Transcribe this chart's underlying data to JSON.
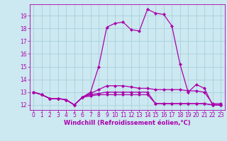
{
  "xlabel": "Windchill (Refroidissement éolien,°C)",
  "background_color": "#cce8f0",
  "grid_color": "#aad0dc",
  "line_color": "#aa00aa",
  "x_hours": [
    0,
    1,
    2,
    3,
    4,
    5,
    6,
    7,
    8,
    9,
    10,
    11,
    12,
    13,
    14,
    15,
    16,
    17,
    18,
    19,
    20,
    21,
    22,
    23
  ],
  "series": [
    [
      13.0,
      12.8,
      12.5,
      12.5,
      12.4,
      12.0,
      12.6,
      13.0,
      15.0,
      18.1,
      18.4,
      18.5,
      17.9,
      17.8,
      19.5,
      19.2,
      19.1,
      18.2,
      15.2,
      13.0,
      13.6,
      13.3,
      12.0,
      12.0
    ],
    [
      13.0,
      12.8,
      12.5,
      12.5,
      12.4,
      12.0,
      12.6,
      12.9,
      13.2,
      13.5,
      13.5,
      13.5,
      13.4,
      13.3,
      13.3,
      13.2,
      13.2,
      13.2,
      13.2,
      13.1,
      13.1,
      13.0,
      12.1,
      12.1
    ],
    [
      13.0,
      12.8,
      12.5,
      12.5,
      12.4,
      12.0,
      12.6,
      12.8,
      12.9,
      13.0,
      13.0,
      13.0,
      13.0,
      13.0,
      13.0,
      12.1,
      12.1,
      12.1,
      12.1,
      12.1,
      12.1,
      12.1,
      12.0,
      12.0
    ],
    [
      13.0,
      12.8,
      12.5,
      12.5,
      12.4,
      12.0,
      12.6,
      12.7,
      12.8,
      12.8,
      12.8,
      12.8,
      12.8,
      12.8,
      12.8,
      12.1,
      12.1,
      12.1,
      12.1,
      12.1,
      12.1,
      12.1,
      12.0,
      12.0
    ]
  ],
  "ylim": [
    11.6,
    19.9
  ],
  "yticks": [
    12,
    13,
    14,
    15,
    16,
    17,
    18,
    19
  ],
  "xlim": [
    -0.5,
    23.5
  ],
  "xticks": [
    0,
    1,
    2,
    3,
    4,
    5,
    6,
    7,
    8,
    9,
    10,
    11,
    12,
    13,
    14,
    15,
    16,
    17,
    18,
    19,
    20,
    21,
    22,
    23
  ],
  "tick_fontsize": 5.5,
  "xlabel_fontsize": 6.0,
  "marker_size": 2.2,
  "linewidth": 0.9
}
